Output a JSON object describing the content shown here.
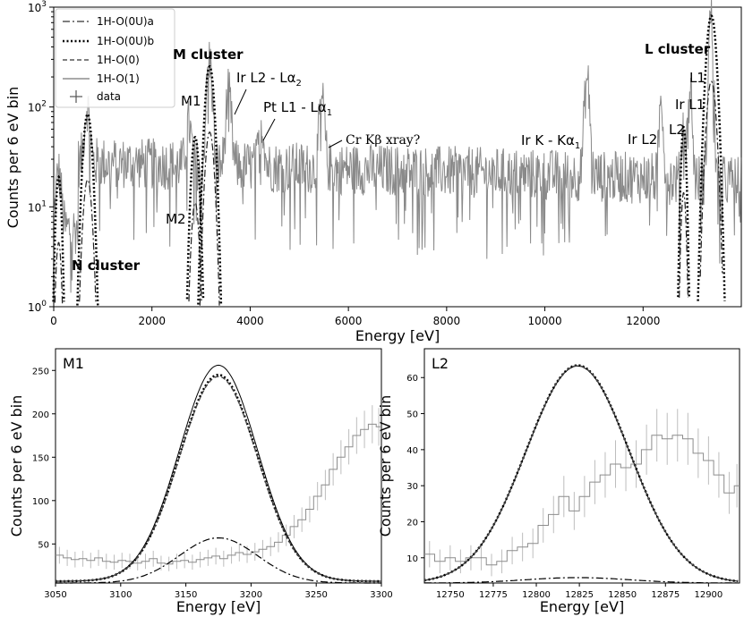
{
  "chart_data": [
    {
      "id": "spectrum",
      "type": "line",
      "xlabel": "Energy [eV]",
      "ylabel": "Counts per 6 eV bin",
      "xlim": [
        0,
        14000
      ],
      "ylim": [
        1,
        1000
      ],
      "yscale": "log",
      "x_ticks": [
        "0",
        "2000",
        "4000",
        "6000",
        "8000",
        "10000",
        "12000"
      ],
      "y_ticks": [
        {
          "base": "10",
          "exp": "0"
        },
        {
          "base": "10",
          "exp": "1"
        },
        {
          "base": "10",
          "exp": "2"
        },
        {
          "base": "10",
          "exp": "3"
        }
      ],
      "legend": {
        "placement": "top-left",
        "entries": [
          {
            "label": "1H-O(0U)a",
            "style": "dashdot"
          },
          {
            "label": "1H-O(0U)b",
            "style": "dotted"
          },
          {
            "label": "1H-O(0)",
            "style": "dashed"
          },
          {
            "label": "1H-O(1)",
            "style": "solid"
          },
          {
            "label": "data",
            "style": "plus"
          }
        ]
      },
      "annotations": [
        {
          "key": "m_cluster",
          "text": "M cluster",
          "bold": true
        },
        {
          "key": "l_cluster",
          "text": "L cluster",
          "bold": true
        },
        {
          "key": "n_cluster",
          "text": "N cluster",
          "bold": true
        },
        {
          "key": "m1",
          "text": "M1"
        },
        {
          "key": "m2",
          "text": "M2"
        },
        {
          "key": "ir_l2_la2",
          "text": "Ir L2 - Lα",
          "sub": "2"
        },
        {
          "key": "pt_l1_la1",
          "text": "Pt L1 - Lα",
          "sub": "1"
        },
        {
          "key": "cr_kb",
          "text": "Cr Kβ xray?",
          "serif": true
        },
        {
          "key": "ir_k_ka1",
          "text": "Ir K - Kα",
          "sub": "1"
        },
        {
          "key": "ir_l2",
          "text": "Ir L2"
        },
        {
          "key": "ir_l1",
          "text": "Ir L1"
        },
        {
          "key": "l1",
          "text": "L1"
        },
        {
          "key": "l2",
          "text": "L2"
        }
      ],
      "data_peaks": [
        {
          "x": 100,
          "y": 16
        },
        {
          "x": 680,
          "y": 75
        },
        {
          "x": 2750,
          "y": 40
        },
        {
          "x": 3170,
          "y": 270
        },
        {
          "x": 3560,
          "y": 110
        },
        {
          "x": 4230,
          "y": 45
        },
        {
          "x": 5460,
          "y": 90
        },
        {
          "x": 10860,
          "y": 160
        },
        {
          "x": 12370,
          "y": 95
        },
        {
          "x": 12830,
          "y": 50
        },
        {
          "x": 12960,
          "y": 120
        },
        {
          "x": 13380,
          "y": 800
        }
      ],
      "data_baseline": {
        "from": 500,
        "to": 14000,
        "start": 28,
        "end": 18
      },
      "model_peaks": [
        {
          "center": 100,
          "peak": 20,
          "sigma": 45
        },
        {
          "center": 690,
          "peak": 85,
          "sigma": 70
        },
        {
          "center": 2880,
          "peak": 50,
          "sigma": 60
        },
        {
          "center": 3175,
          "peak": 255,
          "sigma": 70
        },
        {
          "center": 12825,
          "peak": 63,
          "sigma": 40
        },
        {
          "center": 13390,
          "peak": 820,
          "sigma": 75
        }
      ]
    },
    {
      "id": "m1",
      "type": "line",
      "panel_label": "M1",
      "xlabel": "Energy [eV]",
      "ylabel": "Counts per 6 eV bin",
      "xlim": [
        3050,
        3300
      ],
      "ylim": [
        5,
        275
      ],
      "x_ticks": [
        3050,
        3100,
        3150,
        3200,
        3250,
        3300
      ],
      "y_ticks": [
        50,
        100,
        150,
        200,
        250
      ],
      "center": 3175,
      "sigma": 30,
      "curves": [
        {
          "label": "1H-O(1)",
          "style": "solid",
          "peak": 256,
          "base": 7
        },
        {
          "label": "1H-O(0U)b",
          "style": "dotted",
          "peak": 245,
          "base": 7
        },
        {
          "label": "1H-O(0)",
          "style": "dashed",
          "peak": 243,
          "base": 7
        },
        {
          "label": "1H-O(0U)a",
          "style": "dashdot",
          "peak": 57,
          "base": 5
        }
      ],
      "histogram_step": 6,
      "histogram": [
        37,
        34,
        32,
        33,
        31,
        34,
        30,
        29,
        31,
        30,
        28,
        30,
        33,
        28,
        27,
        30,
        31,
        29,
        32,
        34,
        36,
        33,
        37,
        40,
        38,
        41,
        44,
        47,
        52,
        60,
        70,
        78,
        90,
        105,
        118,
        136,
        150,
        162,
        175,
        182,
        188,
        185,
        192,
        190,
        180,
        176,
        168,
        150,
        145,
        128,
        120,
        105,
        95,
        80,
        74,
        66,
        58,
        51,
        48,
        42,
        45,
        40,
        38,
        41,
        36,
        34,
        37,
        35,
        33,
        34,
        32,
        30,
        33,
        31,
        34,
        30,
        29,
        31,
        33,
        31,
        30,
        32,
        30,
        29,
        31,
        30,
        28,
        30,
        31,
        29,
        30,
        31,
        28,
        30,
        29
      ]
    },
    {
      "id": "l2",
      "type": "line",
      "panel_label": "L2",
      "xlabel": "Energy [eV]",
      "ylabel": "Counts per 6 eV bin",
      "xlim": [
        12735,
        12918
      ],
      "ylim": [
        3,
        68
      ],
      "x_ticks": [
        12750,
        12775,
        12800,
        12825,
        12850,
        12875,
        12900
      ],
      "y_ticks": [
        10,
        20,
        30,
        40,
        50,
        60
      ],
      "center": 12824,
      "sigma": 30,
      "curves": [
        {
          "label": "1H-O(1)",
          "style": "solid",
          "peak": 63.2,
          "base": 3
        },
        {
          "label": "1H-O(0U)b",
          "style": "dotted",
          "peak": 63.4,
          "base": 3
        },
        {
          "label": "1H-O(0)",
          "style": "dashed",
          "peak": 63.3,
          "base": 3
        },
        {
          "label": "1H-O(0U)a",
          "style": "dashdot",
          "peak": 4.5,
          "base": 3
        }
      ],
      "histogram_step": 6,
      "histogram": [
        11,
        9,
        10,
        9,
        10,
        10,
        8,
        9,
        12,
        13,
        14,
        19,
        22,
        27,
        23,
        27,
        31,
        33,
        36,
        35,
        36,
        40,
        44,
        43,
        44,
        43,
        39,
        37,
        33,
        28,
        30,
        23,
        21,
        16,
        15,
        12,
        11,
        10,
        11,
        9,
        10,
        9,
        11,
        13,
        12,
        10,
        8,
        11,
        9,
        10,
        12,
        11,
        9,
        10,
        12,
        14
      ]
    }
  ]
}
